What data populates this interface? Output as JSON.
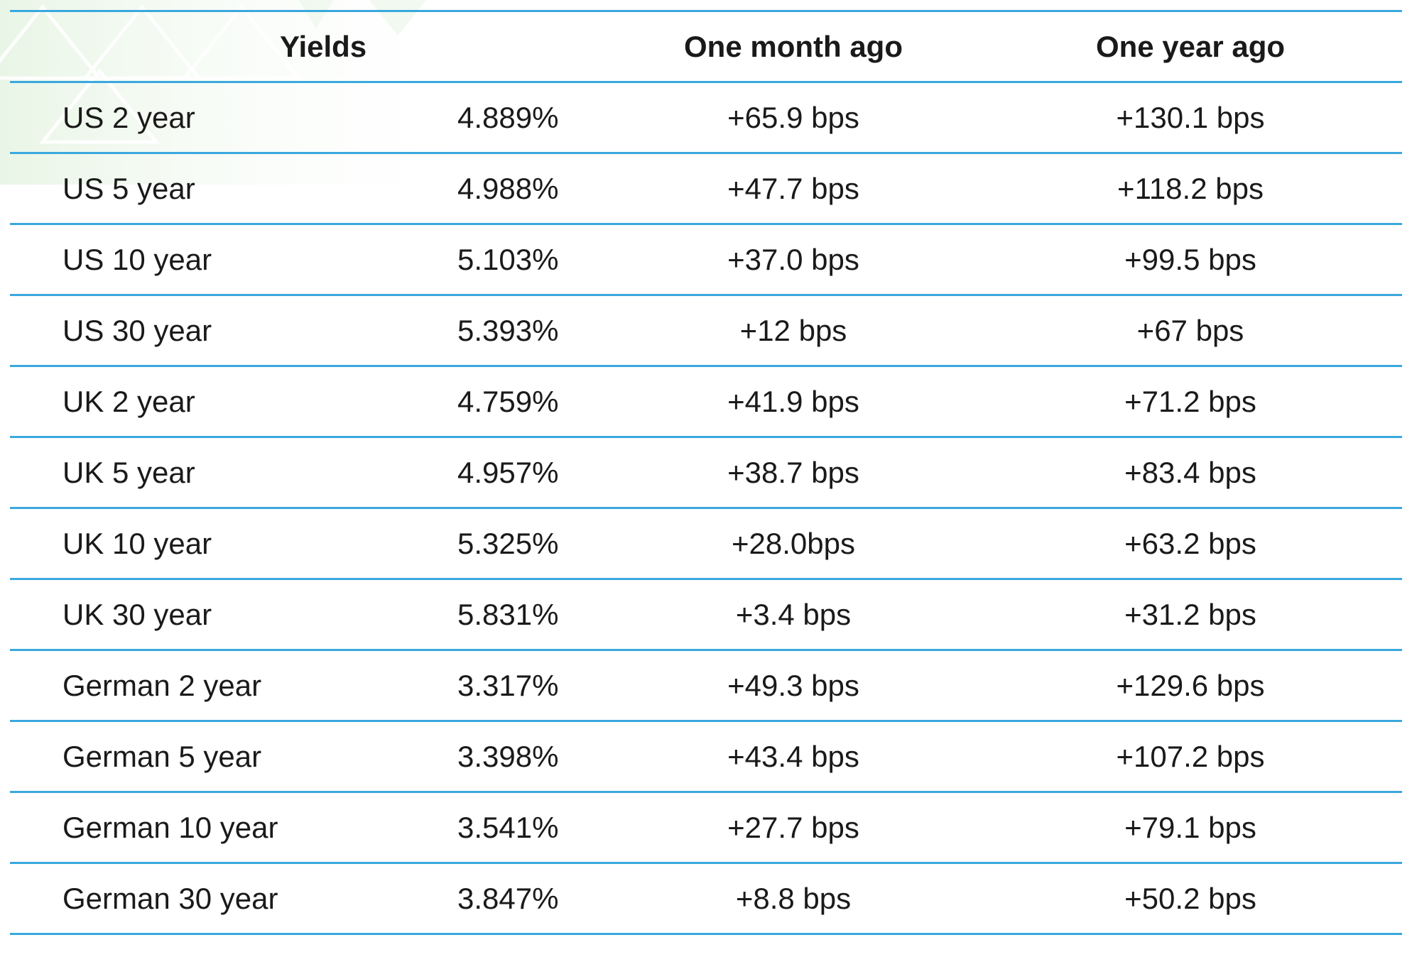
{
  "chart_data": {
    "type": "table",
    "columns": [
      "Yields",
      "",
      "One month ago",
      "One year ago"
    ],
    "rows": [
      {
        "label": "US 2 year",
        "yield": "4.889%",
        "one_month_ago": "+65.9 bps",
        "one_year_ago": "+130.1 bps"
      },
      {
        "label": "US 5 year",
        "yield": "4.988%",
        "one_month_ago": "+47.7 bps",
        "one_year_ago": "+118.2 bps"
      },
      {
        "label": "US 10 year",
        "yield": "5.103%",
        "one_month_ago": "+37.0 bps",
        "one_year_ago": "+99.5 bps"
      },
      {
        "label": "US 30 year",
        "yield": "5.393%",
        "one_month_ago": "+12 bps",
        "one_year_ago": "+67 bps"
      },
      {
        "label": "UK 2 year",
        "yield": "4.759%",
        "one_month_ago": "+41.9 bps",
        "one_year_ago": "+71.2 bps"
      },
      {
        "label": "UK 5 year",
        "yield": "4.957%",
        "one_month_ago": "+38.7 bps",
        "one_year_ago": "+83.4 bps"
      },
      {
        "label": "UK 10 year",
        "yield": "5.325%",
        "one_month_ago": "+28.0bps",
        "one_year_ago": "+63.2 bps"
      },
      {
        "label": "UK 30 year",
        "yield": "5.831%",
        "one_month_ago": "+3.4 bps",
        "one_year_ago": "+31.2 bps"
      },
      {
        "label": "German 2 year",
        "yield": "3.317%",
        "one_month_ago": "+49.3 bps",
        "one_year_ago": "+129.6 bps"
      },
      {
        "label": "German 5 year",
        "yield": "3.398%",
        "one_month_ago": "+43.4 bps",
        "one_year_ago": "+107.2 bps"
      },
      {
        "label": "German 10 year",
        "yield": "3.541%",
        "one_month_ago": "+27.7 bps",
        "one_year_ago": "+79.1 bps"
      },
      {
        "label": "German 30 year",
        "yield": "3.847%",
        "one_month_ago": "+8.8 bps",
        "one_year_ago": "+50.2 bps"
      }
    ]
  },
  "colors": {
    "rule": "#3aa8de",
    "text": "#1a1a1a",
    "decoration": "#dff2df"
  }
}
